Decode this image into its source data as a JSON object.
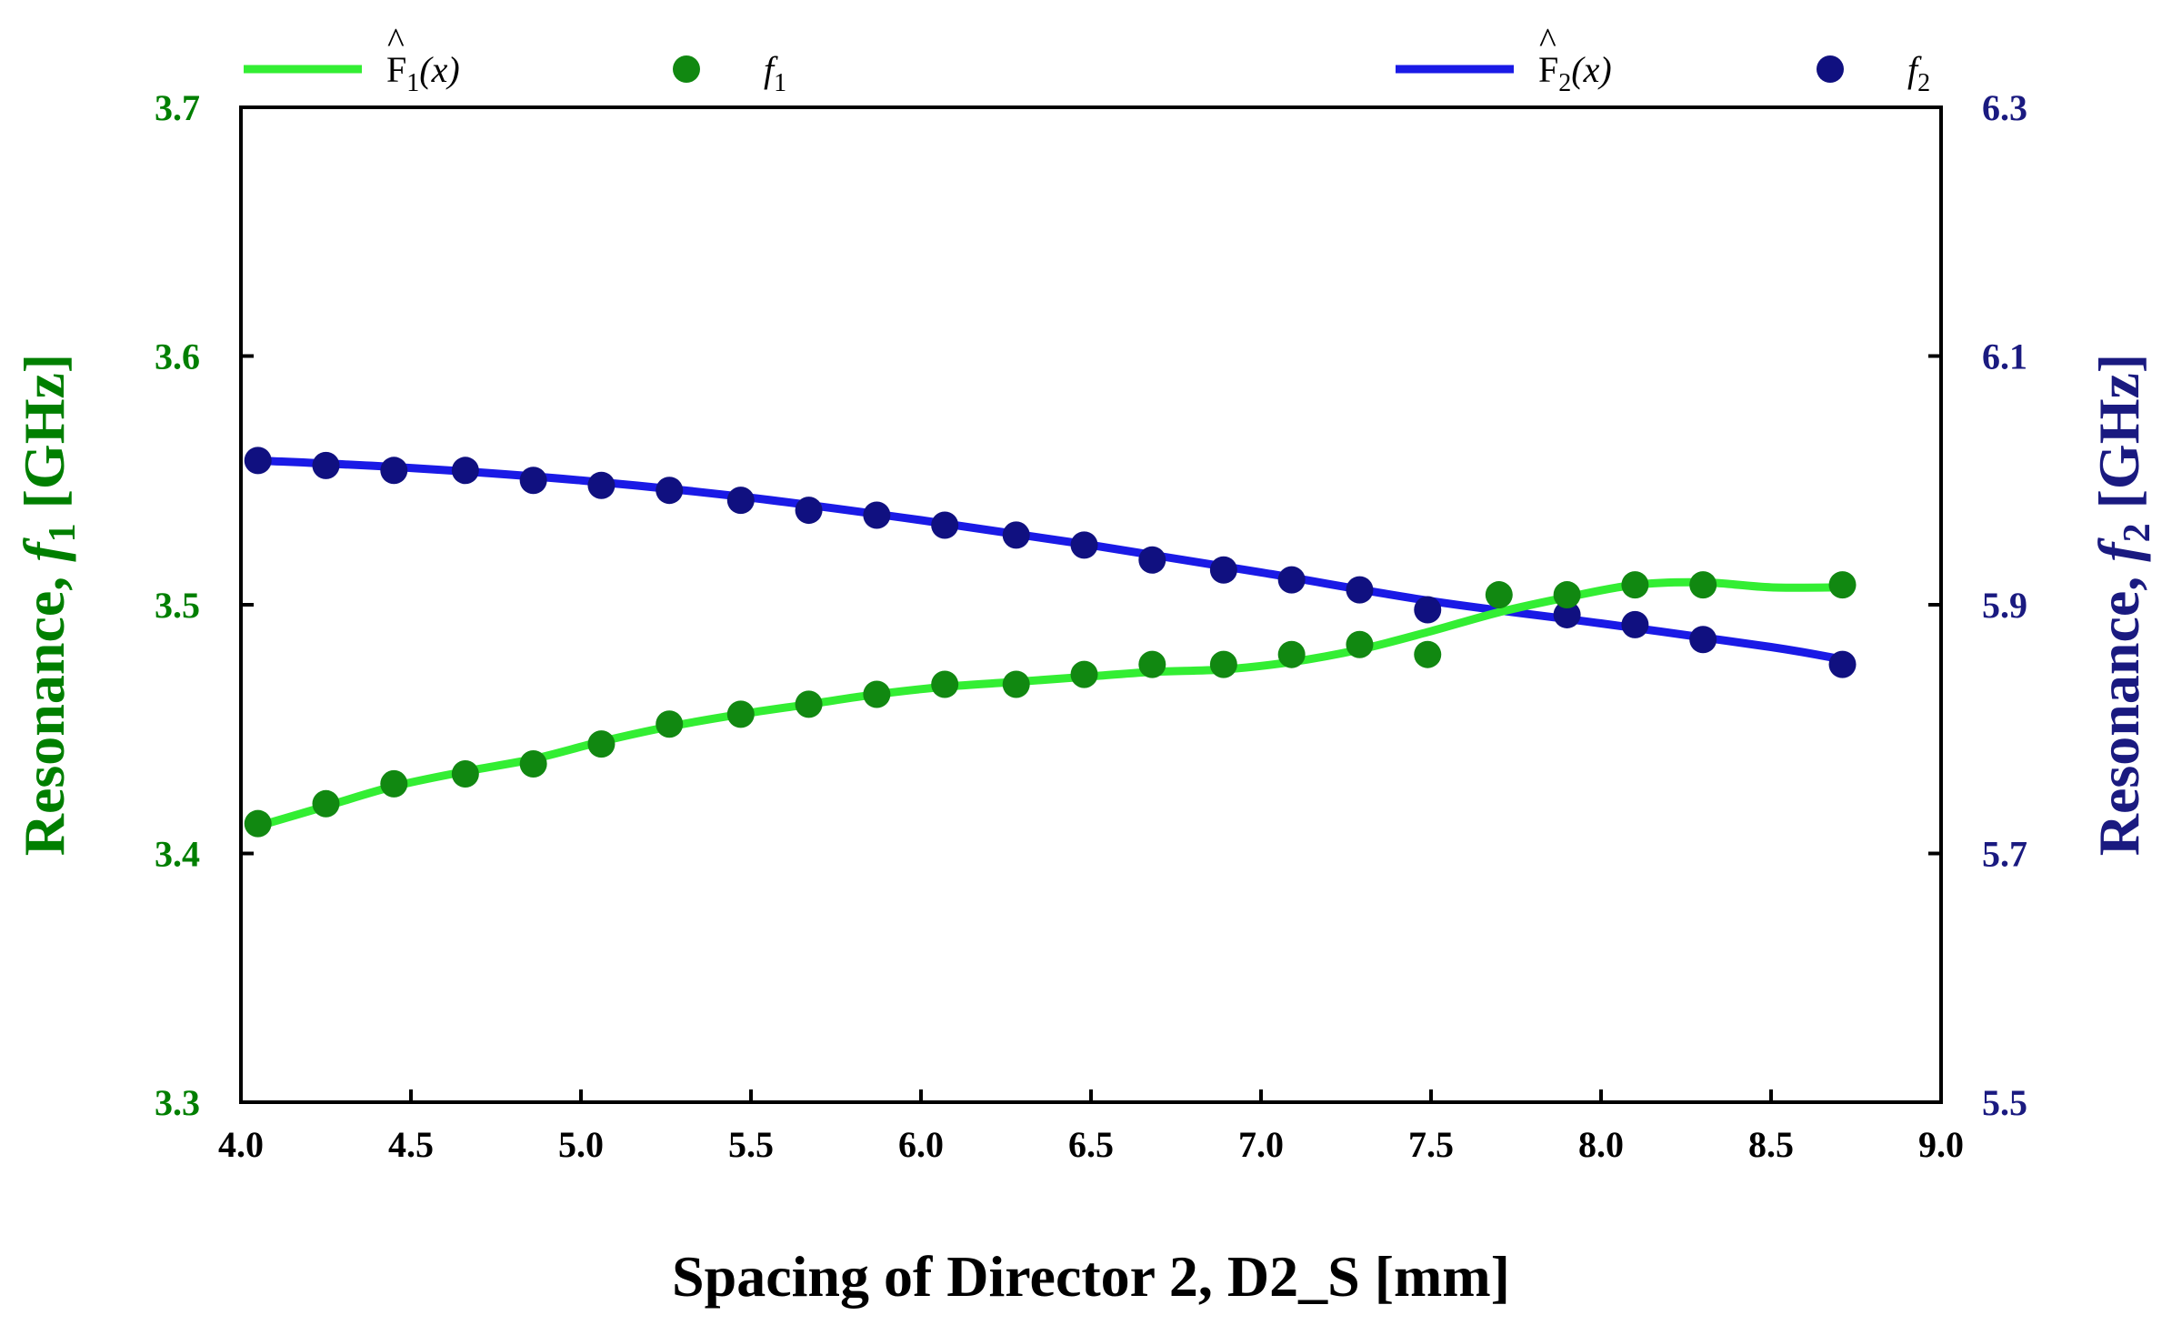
{
  "chart_data": {
    "type": "line",
    "xlabel": "Spacing of Director 2, D2_S [mm]",
    "ylabel_left": {
      "prefix": "Resonance, ",
      "var": "f",
      "sub": "1",
      "suffix": " [GHz]"
    },
    "ylabel_right": {
      "prefix": "Resonance, ",
      "var": "f",
      "sub": "2",
      "suffix": " [GHz]"
    },
    "xlim": [
      4.0,
      9.0
    ],
    "ylim_left": [
      3.3,
      3.7
    ],
    "ylim_right": [
      5.5,
      6.3
    ],
    "x_ticks": [
      "4.0",
      "4.5",
      "5.0",
      "5.5",
      "6.0",
      "6.5",
      "7.0",
      "7.5",
      "8.0",
      "8.5",
      "9.0"
    ],
    "y_ticks_left": [
      "3.3",
      "3.4",
      "3.5",
      "3.6",
      "3.7"
    ],
    "y_ticks_right": [
      "5.5",
      "5.7",
      "5.9",
      "6.1",
      "6.3"
    ],
    "grid": false,
    "legend_position": "top",
    "colors": {
      "f1_line": "#33ee33",
      "f1_marker": "#118811",
      "f2_line": "#1a1ae6",
      "f2_marker": "#101080",
      "left_axis": "#007f00",
      "right_axis": "#1a1a80"
    },
    "legend": [
      {
        "key": "F1_fit",
        "base": "F",
        "sub": "1",
        "arg": "(x)",
        "hat": "^"
      },
      {
        "key": "f1",
        "var": "f",
        "sub": "1"
      },
      {
        "key": "F2_fit",
        "base": "F",
        "sub": "2",
        "arg": "(x)",
        "hat": "^"
      },
      {
        "key": "f2",
        "var": "f",
        "sub": "2"
      }
    ],
    "series": [
      {
        "key": "f1",
        "axis": "left",
        "x": [
          4.05,
          4.25,
          4.45,
          4.66,
          4.86,
          5.06,
          5.26,
          5.47,
          5.67,
          5.87,
          6.07,
          6.28,
          6.48,
          6.68,
          6.89,
          7.09,
          7.29,
          7.49,
          7.7,
          7.9,
          8.1,
          8.3,
          8.71
        ],
        "y": [
          3.412,
          3.42,
          3.428,
          3.432,
          3.436,
          3.444,
          3.452,
          3.456,
          3.46,
          3.464,
          3.468,
          3.468,
          3.472,
          3.476,
          3.476,
          3.48,
          3.484,
          3.48,
          3.504,
          3.504,
          3.508,
          3.508,
          3.508
        ]
      },
      {
        "key": "F1_fit",
        "axis": "left",
        "x": [
          4.05,
          4.25,
          4.45,
          4.66,
          4.86,
          5.06,
          5.26,
          5.47,
          5.67,
          5.87,
          6.07,
          6.28,
          6.48,
          6.68,
          6.89,
          7.09,
          7.29,
          7.49,
          7.7,
          7.9,
          8.1,
          8.3,
          8.5,
          8.71
        ],
        "y": [
          3.411,
          3.419,
          3.427,
          3.433,
          3.438,
          3.445,
          3.451,
          3.456,
          3.46,
          3.464,
          3.467,
          3.469,
          3.471,
          3.473,
          3.474,
          3.477,
          3.482,
          3.489,
          3.497,
          3.503,
          3.508,
          3.509,
          3.507,
          3.507
        ]
      },
      {
        "key": "f2",
        "axis": "right",
        "x": [
          4.05,
          4.25,
          4.45,
          4.66,
          4.86,
          5.06,
          5.26,
          5.47,
          5.67,
          5.87,
          6.07,
          6.28,
          6.48,
          6.68,
          6.89,
          7.09,
          7.29,
          7.49,
          7.9,
          8.1,
          8.3,
          8.71
        ],
        "y": [
          6.016,
          6.012,
          6.008,
          6.008,
          6.0,
          5.996,
          5.992,
          5.984,
          5.976,
          5.972,
          5.964,
          5.956,
          5.948,
          5.936,
          5.928,
          5.92,
          5.912,
          5.896,
          5.892,
          5.884,
          5.872,
          5.852
        ]
      },
      {
        "key": "F2_fit",
        "axis": "right",
        "x": [
          4.05,
          4.5,
          5.0,
          5.5,
          6.0,
          6.5,
          7.0,
          7.5,
          8.0,
          8.5,
          8.71
        ],
        "y": [
          6.016,
          6.01,
          6.0,
          5.986,
          5.968,
          5.948,
          5.926,
          5.903,
          5.885,
          5.866,
          5.856
        ]
      }
    ]
  }
}
